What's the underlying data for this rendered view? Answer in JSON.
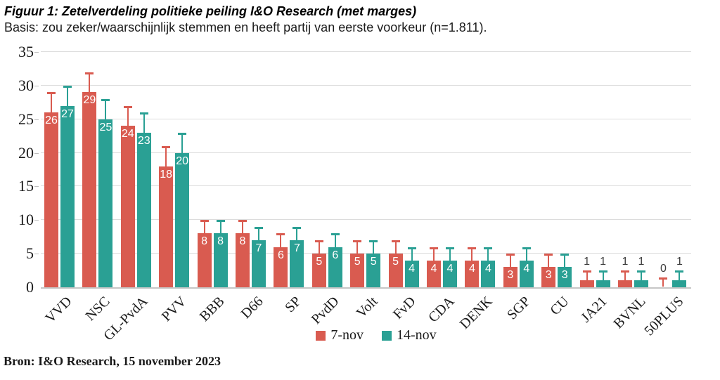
{
  "figure": {
    "title": "Figuur 1: Zetelverdeling politieke peiling I&O Research (met marges)",
    "subtitle": "Basis: zou zeker/waarschijnlijk stemmen en heeft partij van eerste voorkeur (n=1.811).",
    "source": "Bron: I&O Research, 15 november 2023"
  },
  "chart_data": {
    "type": "bar",
    "title": "Figuur 1: Zetelverdeling politieke peiling I&O Research (met marges)",
    "subtitle": "Basis: zou zeker/waarschijnlijk stemmen en heeft partij van eerste voorkeur (n=1.811).",
    "categories": [
      "VVD",
      "NSC",
      "GL-PvdA",
      "PVV",
      "BBB",
      "D66",
      "SP",
      "PvdD",
      "Volt",
      "FvD",
      "CDA",
      "DENK",
      "SGP",
      "CU",
      "JA21",
      "BVNL",
      "50PLUS"
    ],
    "series": [
      {
        "name": "7-nov",
        "color": "#d95b50",
        "values": [
          26,
          29,
          24,
          18,
          8,
          8,
          6,
          5,
          5,
          5,
          4,
          4,
          3,
          3,
          1,
          1,
          0
        ],
        "upper": [
          29,
          32,
          27,
          21,
          10,
          10,
          8,
          7,
          7,
          7,
          6,
          6,
          5,
          5,
          2.5,
          2.5,
          1.5
        ]
      },
      {
        "name": "14-nov",
        "color": "#2aa094",
        "values": [
          27,
          25,
          23,
          20,
          8,
          7,
          7,
          6,
          5,
          4,
          4,
          4,
          4,
          3,
          1,
          1,
          1
        ],
        "upper": [
          30,
          28,
          26,
          23,
          10,
          9,
          9,
          8,
          7,
          6,
          6,
          6,
          6,
          5,
          2.5,
          2.5,
          2.5
        ]
      }
    ],
    "error_bars": "upper margins shown as whiskers above each bar",
    "ylim": [
      0,
      35
    ],
    "yticks": [
      0,
      5,
      10,
      15,
      20,
      25,
      30,
      35
    ],
    "xlabel": "",
    "ylabel": "",
    "grid": true,
    "legend_position": "bottom-center",
    "label_color_inside": "#ffffff",
    "label_color_outside": "#3d3d3d",
    "source": "Bron: I&O Research, 15 november 2023"
  }
}
